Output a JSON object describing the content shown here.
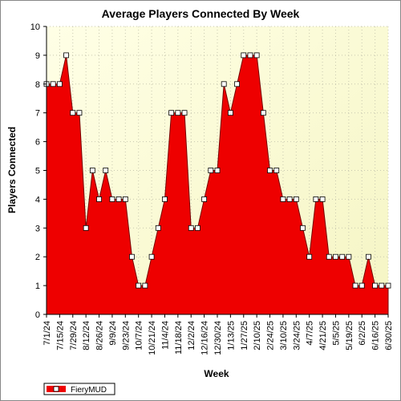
{
  "chart_data": {
    "type": "area",
    "title": "Average Players Connected By Week",
    "xlabel": "Week",
    "ylabel": "Players Connected",
    "ylim": [
      0,
      10
    ],
    "yticks": [
      0,
      1,
      2,
      3,
      4,
      5,
      6,
      7,
      8,
      9,
      10
    ],
    "grid": true,
    "legend_position": "bottom-left",
    "colors": {
      "fill": "#ee0000",
      "line": "#770000",
      "plot_bg_light": "#ffffe6",
      "plot_bg_dark": "#f5f5c4",
      "grid": "#c8c8b0"
    },
    "x_tick_labels": [
      "7/1/24",
      "7/15/24",
      "7/29/24",
      "8/12/24",
      "8/26/24",
      "9/9/24",
      "9/23/24",
      "10/7/24",
      "10/21/24",
      "11/4/24",
      "11/18/24",
      "12/2/24",
      "12/16/24",
      "12/30/24",
      "1/13/25",
      "1/27/25",
      "2/10/25",
      "2/24/25",
      "3/10/25",
      "3/24/25",
      "4/7/25",
      "4/21/25",
      "5/5/25",
      "5/19/25",
      "6/2/25",
      "6/16/25",
      "6/30/25"
    ],
    "series": [
      {
        "name": "FieryMUD",
        "values": [
          8,
          8,
          8,
          9,
          7,
          7,
          3,
          5,
          4,
          5,
          4,
          4,
          4,
          2,
          1,
          1,
          2,
          3,
          4,
          7,
          7,
          7,
          3,
          3,
          4,
          5,
          5,
          8,
          7,
          8,
          9,
          9,
          9,
          7,
          5,
          5,
          4,
          4,
          4,
          3,
          2,
          4,
          4,
          2,
          2,
          2,
          2,
          1,
          1,
          2,
          1,
          1,
          1
        ]
      }
    ]
  }
}
